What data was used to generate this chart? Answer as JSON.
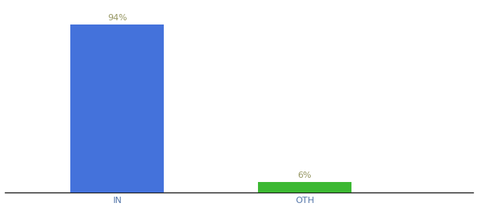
{
  "categories": [
    "IN",
    "OTH"
  ],
  "values": [
    94,
    6
  ],
  "bar_colors": [
    "#4472db",
    "#3cb832"
  ],
  "value_labels": [
    "94%",
    "6%"
  ],
  "background_color": "#ffffff",
  "ylim": [
    0,
    105
  ],
  "bar_width": 0.5,
  "label_fontsize": 9,
  "tick_fontsize": 9,
  "label_color": "#999966",
  "tick_color": "#5577aa"
}
